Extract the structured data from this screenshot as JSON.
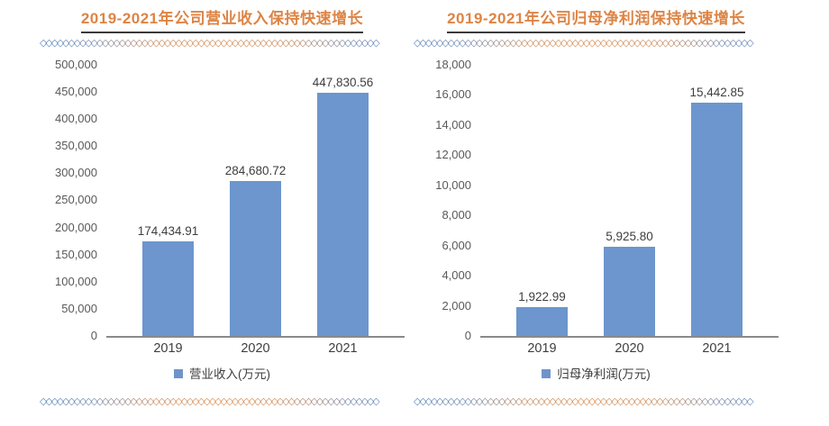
{
  "decor": {
    "chain": "◇◇◇◇◇◇◇◇◇◇◇◇◇◇◇◇◇◇◇◇◇◇◇◇◇◇◇◇◇◇◇◇◇◇◇◇◇◇◇◇◇◇◇◇◇◇◇◇◇◇◇◇◇◇◇◇◇◇◇◇",
    "gradient": [
      "#4E7EBC",
      "#D8884A",
      "#4E7EBC"
    ]
  },
  "colors": {
    "title": "#DD8445",
    "title_underline": "#3A3A3A",
    "bar": "#6C96CD",
    "legend_swatch": "#6F94CB",
    "axis_text": "#595959",
    "value_text": "#3E3E3E",
    "baseline": "#8A8A8A"
  },
  "chart_data": [
    {
      "type": "bar",
      "title": "2019-2021年公司营业收入保持快速增长",
      "categories": [
        "2019",
        "2020",
        "2021"
      ],
      "values": [
        174434.91,
        284680.72,
        447830.56
      ],
      "value_labels": [
        "174,434.91",
        "284,680.72",
        "447,830.56"
      ],
      "legend": "营业收入(万元)",
      "legend_position": "bottom",
      "xlabel": "",
      "ylabel": "",
      "ylim": [
        0,
        500000
      ],
      "y_ticks": [
        "0",
        "50,000",
        "100,000",
        "150,000",
        "200,000",
        "250,000",
        "300,000",
        "350,000",
        "400,000",
        "450,000",
        "500,000"
      ],
      "grid": false,
      "bar_color": "#6C96CD"
    },
    {
      "type": "bar",
      "title": "2019-2021年公司归母净利润保持快速增长",
      "categories": [
        "2019",
        "2020",
        "2021"
      ],
      "values": [
        1922.99,
        5925.8,
        15442.85
      ],
      "value_labels": [
        "1,922.99",
        "5,925.80",
        "15,442.85"
      ],
      "legend": "归母净利润(万元)",
      "legend_position": "bottom",
      "xlabel": "",
      "ylabel": "",
      "ylim": [
        0,
        18000
      ],
      "y_ticks": [
        "0",
        "2,000",
        "4,000",
        "6,000",
        "8,000",
        "10,000",
        "12,000",
        "14,000",
        "16,000",
        "18,000"
      ],
      "grid": false,
      "bar_color": "#6C96CD"
    }
  ]
}
